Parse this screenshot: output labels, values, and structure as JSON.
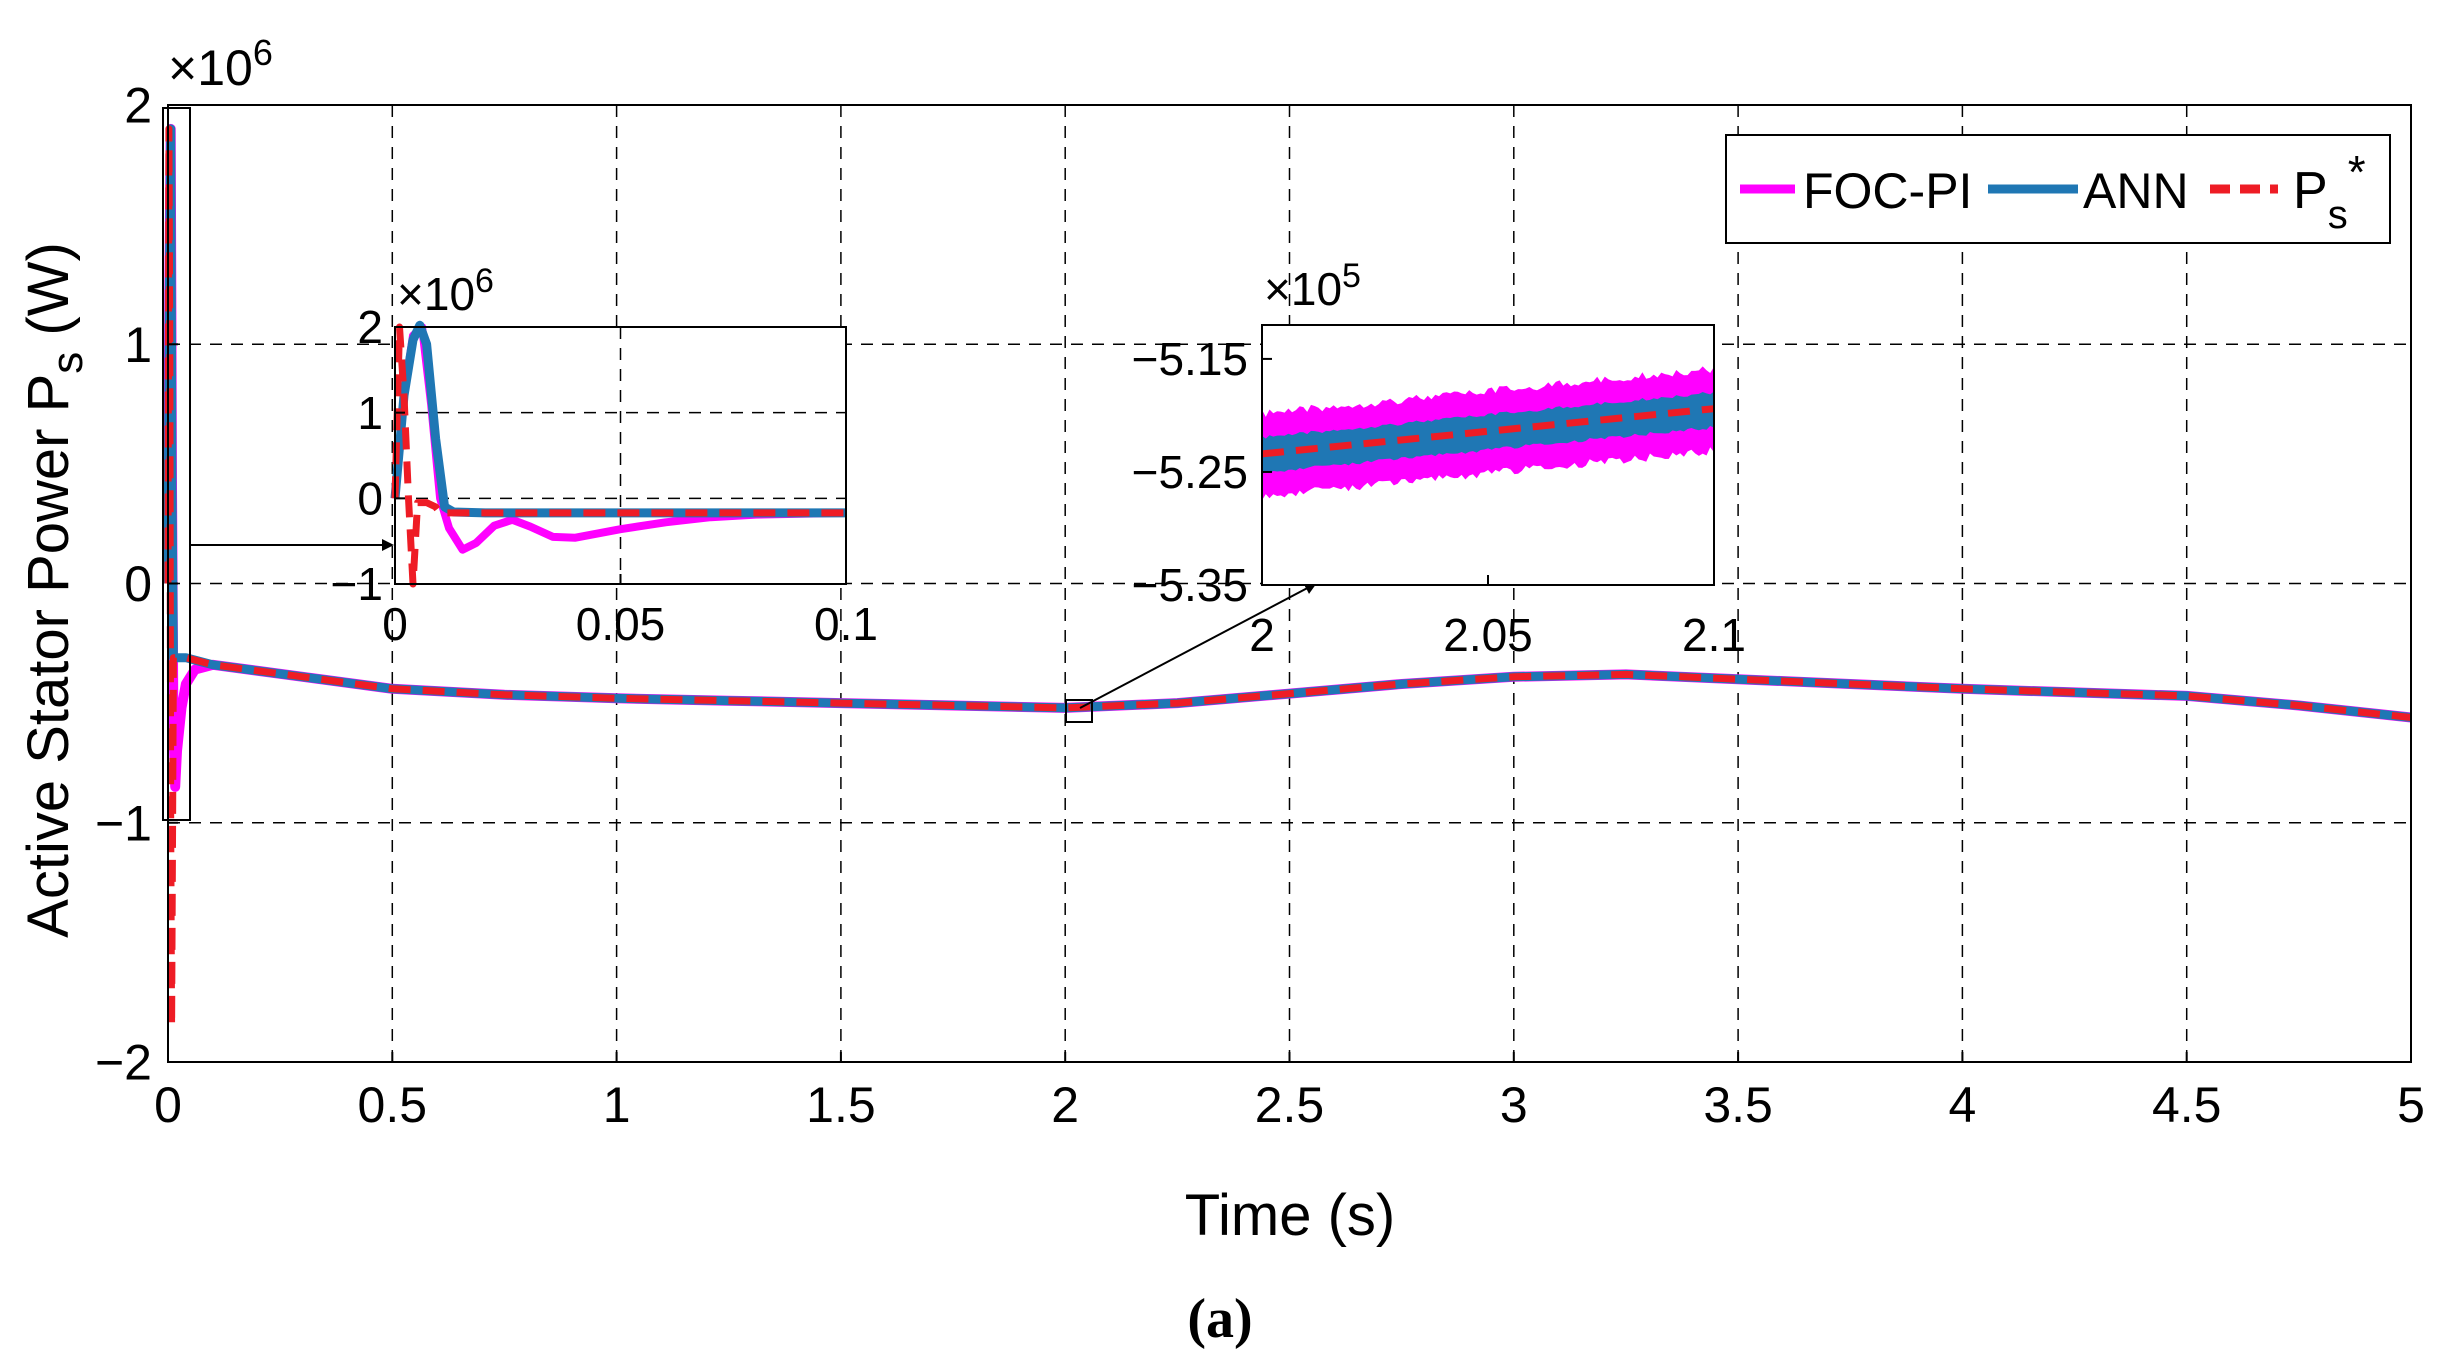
{
  "chart_data": [
    {
      "id": "main",
      "type": "line",
      "xlabel": "Time (s)",
      "ylabel_main": "Active Stator Power P",
      "ylabel_sub": "s",
      "ylabel_unit": " (W)",
      "y_exponent_base": "×10",
      "y_exponent": "6",
      "xlim": [
        0,
        5
      ],
      "ylim": [
        -2,
        2
      ],
      "x_ticks": [
        0,
        0.5,
        1,
        1.5,
        2,
        2.5,
        3,
        3.5,
        4,
        4.5,
        5
      ],
      "x_tick_labels": [
        "0",
        "0.5",
        "1",
        "1.5",
        "2",
        "2.5",
        "3",
        "3.5",
        "4",
        "4.5",
        "5"
      ],
      "y_ticks": [
        -2,
        -1,
        0,
        1,
        2
      ],
      "y_tick_labels": [
        "−2",
        "−1",
        "0",
        "1",
        "2"
      ],
      "grid": true,
      "legend_position": "top-right",
      "series": [
        {
          "name": "FOC-PI",
          "color": "#ff00ff",
          "style": "solid",
          "x": [
            0,
            0.003,
            0.006,
            0.009,
            0.012,
            0.016,
            0.02,
            0.03,
            0.04,
            0.06,
            0.1,
            0.3,
            0.5,
            0.75,
            1.0,
            1.25,
            1.5,
            1.75,
            2.0,
            2.25,
            2.5,
            2.75,
            3.0,
            3.25,
            3.5,
            3.75,
            4.0,
            4.25,
            4.5,
            4.75,
            5.0
          ],
          "y": [
            0,
            1.2,
            1.9,
            0.4,
            -0.6,
            -0.85,
            -0.7,
            -0.52,
            -0.42,
            -0.36,
            -0.34,
            -0.39,
            -0.44,
            -0.465,
            -0.48,
            -0.49,
            -0.5,
            -0.51,
            -0.52,
            -0.5,
            -0.46,
            -0.42,
            -0.39,
            -0.38,
            -0.4,
            -0.42,
            -0.44,
            -0.455,
            -0.47,
            -0.51,
            -0.56
          ]
        },
        {
          "name": "ANN",
          "color": "#1f77b4",
          "style": "solid",
          "x": [
            0,
            0.003,
            0.006,
            0.009,
            0.012,
            0.016,
            0.02,
            0.03,
            0.04,
            0.06,
            0.1,
            0.3,
            0.5,
            0.75,
            1.0,
            1.25,
            1.5,
            1.75,
            2.0,
            2.25,
            2.5,
            2.75,
            3.0,
            3.25,
            3.5,
            3.75,
            4.0,
            4.25,
            4.5,
            4.75,
            5.0
          ],
          "y": [
            0,
            1.2,
            1.9,
            0.4,
            -0.31,
            -0.31,
            -0.31,
            -0.31,
            -0.31,
            -0.32,
            -0.34,
            -0.39,
            -0.44,
            -0.465,
            -0.48,
            -0.49,
            -0.5,
            -0.51,
            -0.52,
            -0.5,
            -0.46,
            -0.42,
            -0.39,
            -0.38,
            -0.4,
            -0.42,
            -0.44,
            -0.455,
            -0.47,
            -0.51,
            -0.56
          ]
        },
        {
          "name": "P_s*",
          "color": "#ee1c25",
          "style": "dashed",
          "x": [
            0,
            0.002,
            0.004,
            0.006,
            0.008,
            0.012,
            0.02,
            0.04,
            0.1,
            0.3,
            0.5,
            0.75,
            1.0,
            1.25,
            1.5,
            1.75,
            2.0,
            2.25,
            2.5,
            2.75,
            3.0,
            3.25,
            3.5,
            3.75,
            4.0,
            4.25,
            4.5,
            4.75,
            5.0
          ],
          "y": [
            0,
            1.9,
            1.0,
            -1.0,
            -1.85,
            -0.31,
            -0.31,
            -0.31,
            -0.34,
            -0.39,
            -0.44,
            -0.465,
            -0.48,
            -0.49,
            -0.5,
            -0.51,
            -0.52,
            -0.5,
            -0.46,
            -0.42,
            -0.39,
            -0.38,
            -0.4,
            -0.42,
            -0.44,
            -0.455,
            -0.47,
            -0.51,
            -0.56
          ]
        }
      ]
    },
    {
      "id": "inset1",
      "type": "line",
      "y_exponent_base": "×10",
      "y_exponent": "6",
      "xlim": [
        0,
        0.1
      ],
      "ylim": [
        -1,
        2
      ],
      "x_ticks": [
        0,
        0.05,
        0.1
      ],
      "x_tick_labels": [
        "0",
        "0.05",
        "0.1"
      ],
      "y_ticks": [
        -1,
        0,
        1,
        2
      ],
      "y_tick_labels": [
        "−1",
        "0",
        "1",
        "2"
      ],
      "grid": true,
      "series": [
        {
          "name": "FOC-PI",
          "color": "#ff00ff",
          "x": [
            0,
            0.002,
            0.004,
            0.006,
            0.008,
            0.01,
            0.012,
            0.015,
            0.018,
            0.022,
            0.026,
            0.03,
            0.035,
            0.04,
            0.05,
            0.06,
            0.07,
            0.08,
            0.09,
            0.1
          ],
          "y": [
            0,
            1.2,
            1.9,
            2.0,
            1.1,
            0.0,
            -0.35,
            -0.6,
            -0.52,
            -0.32,
            -0.25,
            -0.33,
            -0.45,
            -0.46,
            -0.36,
            -0.28,
            -0.22,
            -0.19,
            -0.18,
            -0.17
          ]
        },
        {
          "name": "ANN",
          "color": "#1f77b4",
          "x": [
            0,
            0.002,
            0.004,
            0.0055,
            0.007,
            0.009,
            0.011,
            0.013,
            0.02,
            0.05,
            0.1
          ],
          "y": [
            0,
            1.2,
            1.85,
            2.02,
            1.8,
            0.7,
            -0.1,
            -0.16,
            -0.17,
            -0.17,
            -0.17
          ]
        },
        {
          "name": "P_s*",
          "color": "#ee1c25",
          "x": [
            0,
            0.001,
            0.002,
            0.003,
            0.004,
            0.005,
            0.007,
            0.009,
            0.01,
            0.02,
            0.05,
            0.1
          ],
          "y": [
            0,
            2.0,
            1.2,
            0.0,
            -1.0,
            -0.05,
            -0.05,
            -0.1,
            -0.17,
            -0.17,
            -0.17,
            -0.17
          ]
        }
      ]
    },
    {
      "id": "inset2",
      "type": "line",
      "y_exponent_base": "×10",
      "y_exponent": "5",
      "xlim": [
        2,
        2.1
      ],
      "ylim": [
        -5.35,
        -5.12
      ],
      "x_ticks": [
        2,
        2.05,
        2.1
      ],
      "x_tick_labels": [
        "2",
        "2.05",
        "2.1"
      ],
      "y_ticks": [
        -5.15,
        -5.25,
        -5.35
      ],
      "y_tick_labels": [
        "−5.15",
        "−5.25",
        "−5.35"
      ],
      "grid": false,
      "series": [
        {
          "name": "FOC-PI",
          "color": "#ff00ff",
          "x": [
            2,
            2.1
          ],
          "y_center": [
            -5.235,
            -5.195
          ],
          "band": 0.04
        },
        {
          "name": "ANN",
          "color": "#1f77b4",
          "x": [
            2,
            2.1
          ],
          "y_center": [
            -5.235,
            -5.195
          ],
          "band": 0.017
        },
        {
          "name": "P_s*",
          "color": "#ee1c25",
          "x": [
            2,
            2.1
          ],
          "y": [
            -5.234,
            -5.194
          ]
        }
      ]
    }
  ],
  "legend": {
    "items": [
      {
        "label": "FOC-PI",
        "color": "#ff00ff",
        "style": "solid"
      },
      {
        "label": "ANN",
        "color": "#1f77b4",
        "style": "solid"
      },
      {
        "label": "P",
        "sub": "s",
        "sup": "*",
        "color": "#ee1c25",
        "style": "dashed"
      }
    ]
  },
  "caption": "(a)"
}
